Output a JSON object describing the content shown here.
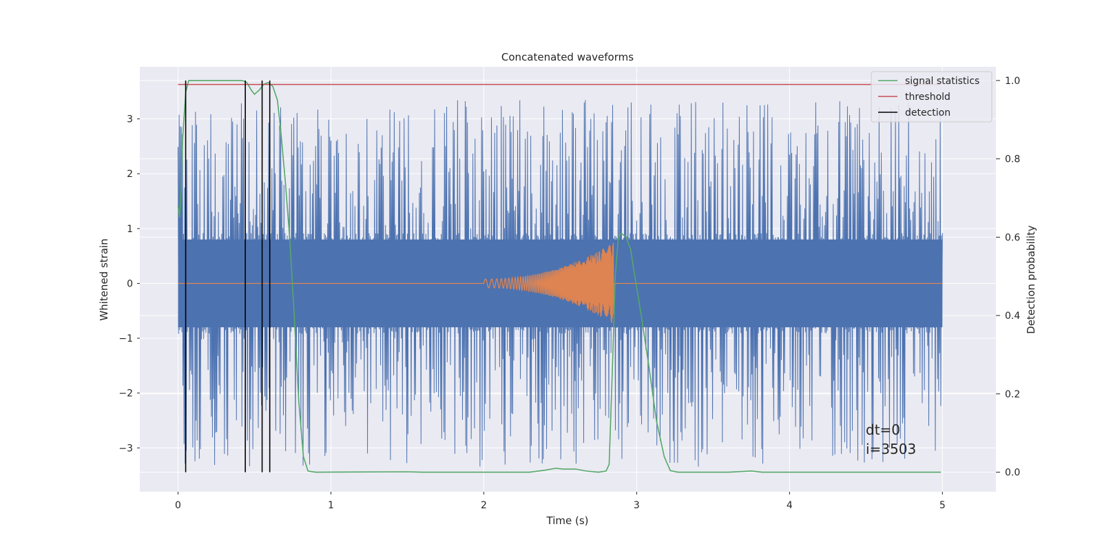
{
  "chart_data": {
    "type": "line",
    "title": "Concatenated waveforms",
    "xlabel": "Time (s)",
    "ylabel": "Whitened strain",
    "ylabel_right": "Detection probability",
    "xlim": [
      -0.25,
      5.35
    ],
    "ylim": [
      -3.8,
      3.95
    ],
    "ylim_right": [
      -0.05,
      1.035
    ],
    "x_ticks": [
      0,
      1,
      2,
      3,
      4,
      5
    ],
    "y_ticks": [
      -3,
      -2,
      -1,
      0,
      1,
      2,
      3
    ],
    "y_ticks_right": [
      0.0,
      0.2,
      0.4,
      0.6,
      0.8,
      1.0
    ],
    "x_tick_labels": [
      "0",
      "1",
      "2",
      "3",
      "4",
      "5"
    ],
    "y_tick_labels": [
      "−3",
      "−2",
      "−1",
      "0",
      "1",
      "2",
      "3"
    ],
    "y_tick_labels_right": [
      "0.0",
      "0.2",
      "0.4",
      "0.6",
      "0.8",
      "1.0"
    ],
    "grid": true,
    "legend_position": "top-right",
    "background": "#eaeaf2",
    "series": [
      {
        "name": "whitened strain (noise)",
        "axis": "left",
        "color": "#4c72b0",
        "x_range": [
          0,
          5
        ],
        "core_amplitude": 0.8,
        "peak_amplitude": 3.35
      },
      {
        "name": "injected waveform",
        "axis": "left",
        "color": "#dd8452",
        "x_range": [
          0,
          5
        ],
        "chirp_start": 2.0,
        "chirp_end": 2.85,
        "chirp_amplitude_start": 0.08,
        "chirp_amplitude_end": 0.75
      },
      {
        "name": "signal statistics",
        "axis": "right",
        "color": "#55a868",
        "points": [
          [
            0.0,
            0.68
          ],
          [
            0.01,
            0.65
          ],
          [
            0.02,
            0.72
          ],
          [
            0.03,
            0.85
          ],
          [
            0.05,
            0.97
          ],
          [
            0.07,
            1.0
          ],
          [
            0.2,
            1.0
          ],
          [
            0.42,
            1.0
          ],
          [
            0.45,
            0.995
          ],
          [
            0.48,
            0.975
          ],
          [
            0.5,
            0.965
          ],
          [
            0.53,
            0.975
          ],
          [
            0.56,
            0.99
          ],
          [
            0.59,
            0.995
          ],
          [
            0.62,
            0.985
          ],
          [
            0.65,
            0.95
          ],
          [
            0.67,
            0.88
          ],
          [
            0.7,
            0.75
          ],
          [
            0.73,
            0.6
          ],
          [
            0.76,
            0.4
          ],
          [
            0.79,
            0.18
          ],
          [
            0.82,
            0.04
          ],
          [
            0.85,
            0.003
          ],
          [
            0.9,
            0.0
          ],
          [
            1.5,
            0.001
          ],
          [
            1.6,
            0.0
          ],
          [
            2.3,
            0.0
          ],
          [
            2.4,
            0.005
          ],
          [
            2.47,
            0.01
          ],
          [
            2.52,
            0.008
          ],
          [
            2.6,
            0.008
          ],
          [
            2.67,
            0.003
          ],
          [
            2.75,
            0.0
          ],
          [
            2.8,
            0.003
          ],
          [
            2.82,
            0.02
          ],
          [
            2.84,
            0.25
          ],
          [
            2.86,
            0.5
          ],
          [
            2.88,
            0.6
          ],
          [
            2.9,
            0.61
          ],
          [
            2.93,
            0.6
          ],
          [
            2.96,
            0.57
          ],
          [
            2.98,
            0.52
          ],
          [
            3.03,
            0.4
          ],
          [
            3.08,
            0.27
          ],
          [
            3.13,
            0.13
          ],
          [
            3.18,
            0.04
          ],
          [
            3.22,
            0.004
          ],
          [
            3.27,
            0.0
          ],
          [
            3.6,
            0.0
          ],
          [
            3.7,
            0.002
          ],
          [
            3.75,
            0.003
          ],
          [
            3.82,
            0.0
          ],
          [
            4.99,
            0.0
          ]
        ]
      },
      {
        "name": "threshold",
        "axis": "right",
        "color": "#c44e52",
        "value": 0.99,
        "x_range": [
          0,
          4.99
        ]
      },
      {
        "name": "detection",
        "axis": "right",
        "color": "#000000",
        "type": "vlines",
        "x": [
          0.05,
          0.44,
          0.55,
          0.6
        ],
        "y_range": [
          0.0,
          1.0
        ]
      }
    ],
    "legend": [
      "signal statistics",
      "threshold",
      "detection"
    ],
    "annotations": [
      "dt=0",
      "i=3503"
    ]
  }
}
